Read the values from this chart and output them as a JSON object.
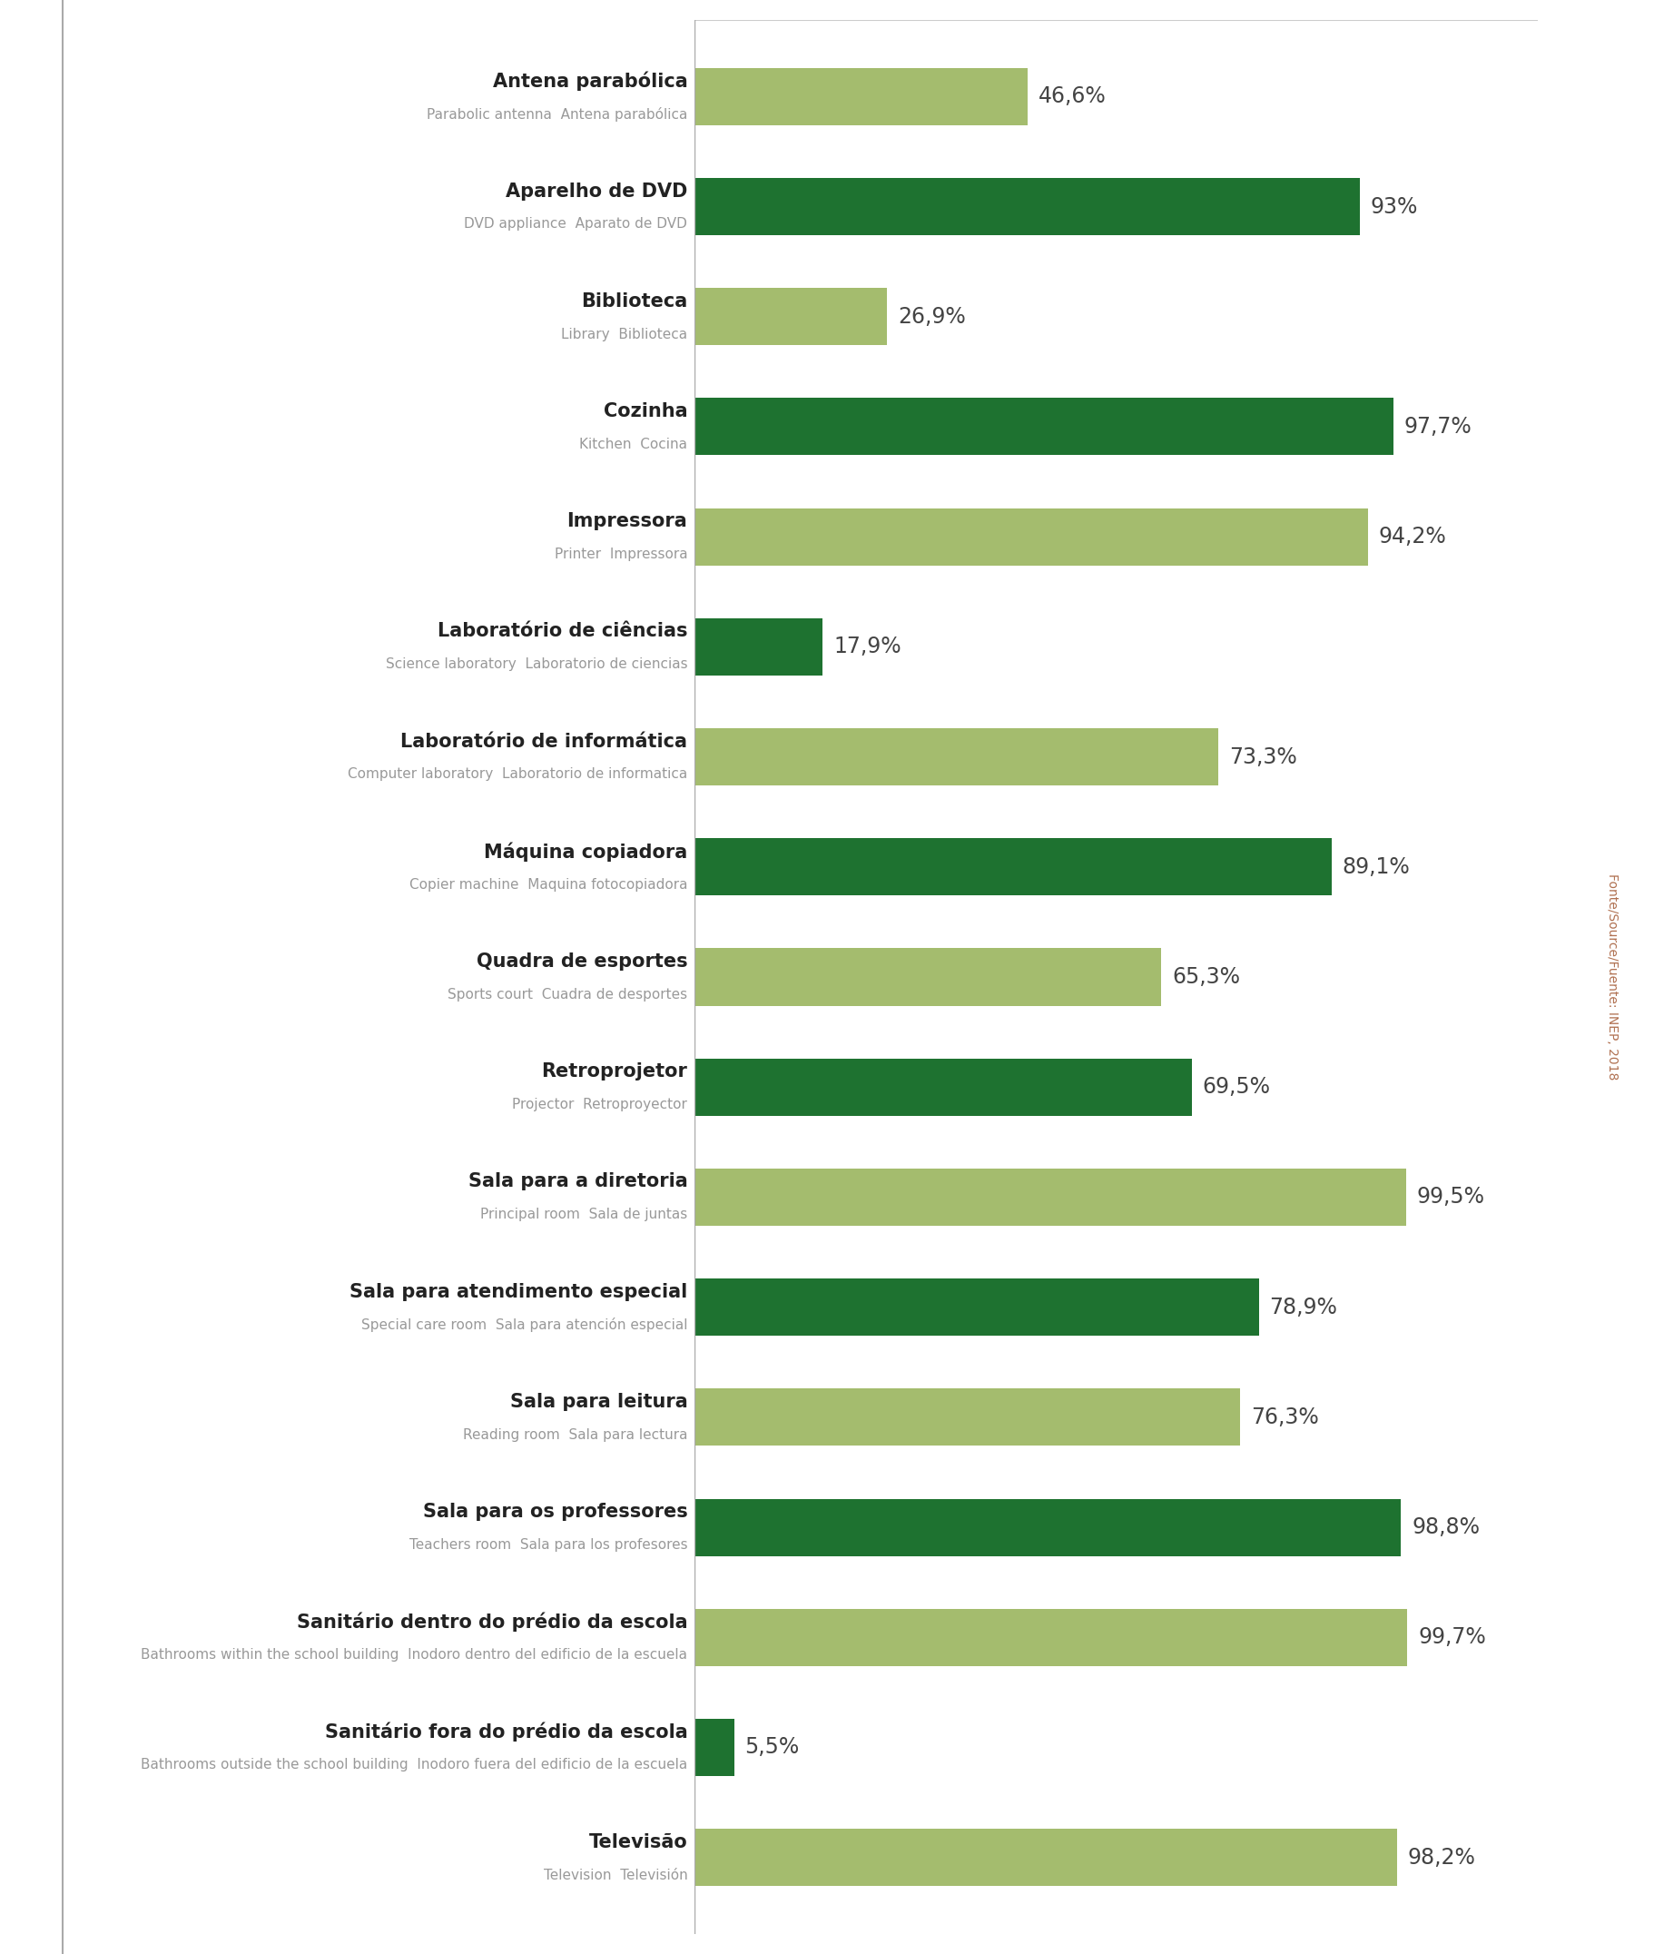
{
  "categories_main": [
    "Antena parabólica",
    "Aparelho de DVD",
    "Biblioteca",
    "Cozinha",
    "Impressora",
    "Laboratório de ciências",
    "Laboratório de informática",
    "Máquina copiadora",
    "Quadra de esportes",
    "Retroprojetor",
    "Sala para a diretoria",
    "Sala para atendimento especial",
    "Sala para leitura",
    "Sala para os professores",
    "Sanitário dentro do prédio da escola",
    "Sanitário fora do prédio da escola",
    "Televisão"
  ],
  "categories_sub": [
    "Parabolic antenna  Antena parabólica",
    "DVD appliance  Aparato de DVD",
    "Library  Biblioteca",
    "Kitchen  Cocina",
    "Printer  Impressora",
    "Science laboratory  Laboratorio de ciencias",
    "Computer laboratory  Laboratorio de informatica",
    "Copier machine  Maquina fotocopiadora",
    "Sports court  Cuadra de desportes",
    "Projector  Retroproyector",
    "Principal room  Sala de juntas",
    "Special care room  Sala para atención especial",
    "Reading room  Sala para lectura",
    "Teachers room  Sala para los profesores",
    "Bathrooms within the school building  Inodoro dentro del edificio de la escuela",
    "Bathrooms outside the school building  Inodoro fuera del edificio de la escuela",
    "Television  Televisión"
  ],
  "values": [
    46.6,
    93.0,
    26.9,
    97.7,
    94.2,
    17.9,
    73.3,
    89.1,
    65.3,
    69.5,
    99.5,
    78.9,
    76.3,
    98.8,
    99.7,
    5.5,
    98.2
  ],
  "labels": [
    "46,6%",
    "93%",
    "26,9%",
    "97,7%",
    "94,2%",
    "17,9%",
    "73,3%",
    "89,1%",
    "65,3%",
    "69,5%",
    "99,5%",
    "78,9%",
    "76,3%",
    "98,8%",
    "99,7%",
    "5,5%",
    "98,2%"
  ],
  "colors": [
    "#a4bc6e",
    "#1e7230",
    "#a4bc6e",
    "#1e7230",
    "#a4bc6e",
    "#1e7230",
    "#a4bc6e",
    "#1e7230",
    "#a4bc6e",
    "#1e7230",
    "#a4bc6e",
    "#1e7230",
    "#a4bc6e",
    "#1e7230",
    "#a4bc6e",
    "#1e7230",
    "#a4bc6e"
  ],
  "bg_color": "#ffffff",
  "bar_height": 0.52,
  "xlim": [
    0,
    118
  ],
  "source_text": "Fonte/Source/Fuente: INEP, 2018"
}
